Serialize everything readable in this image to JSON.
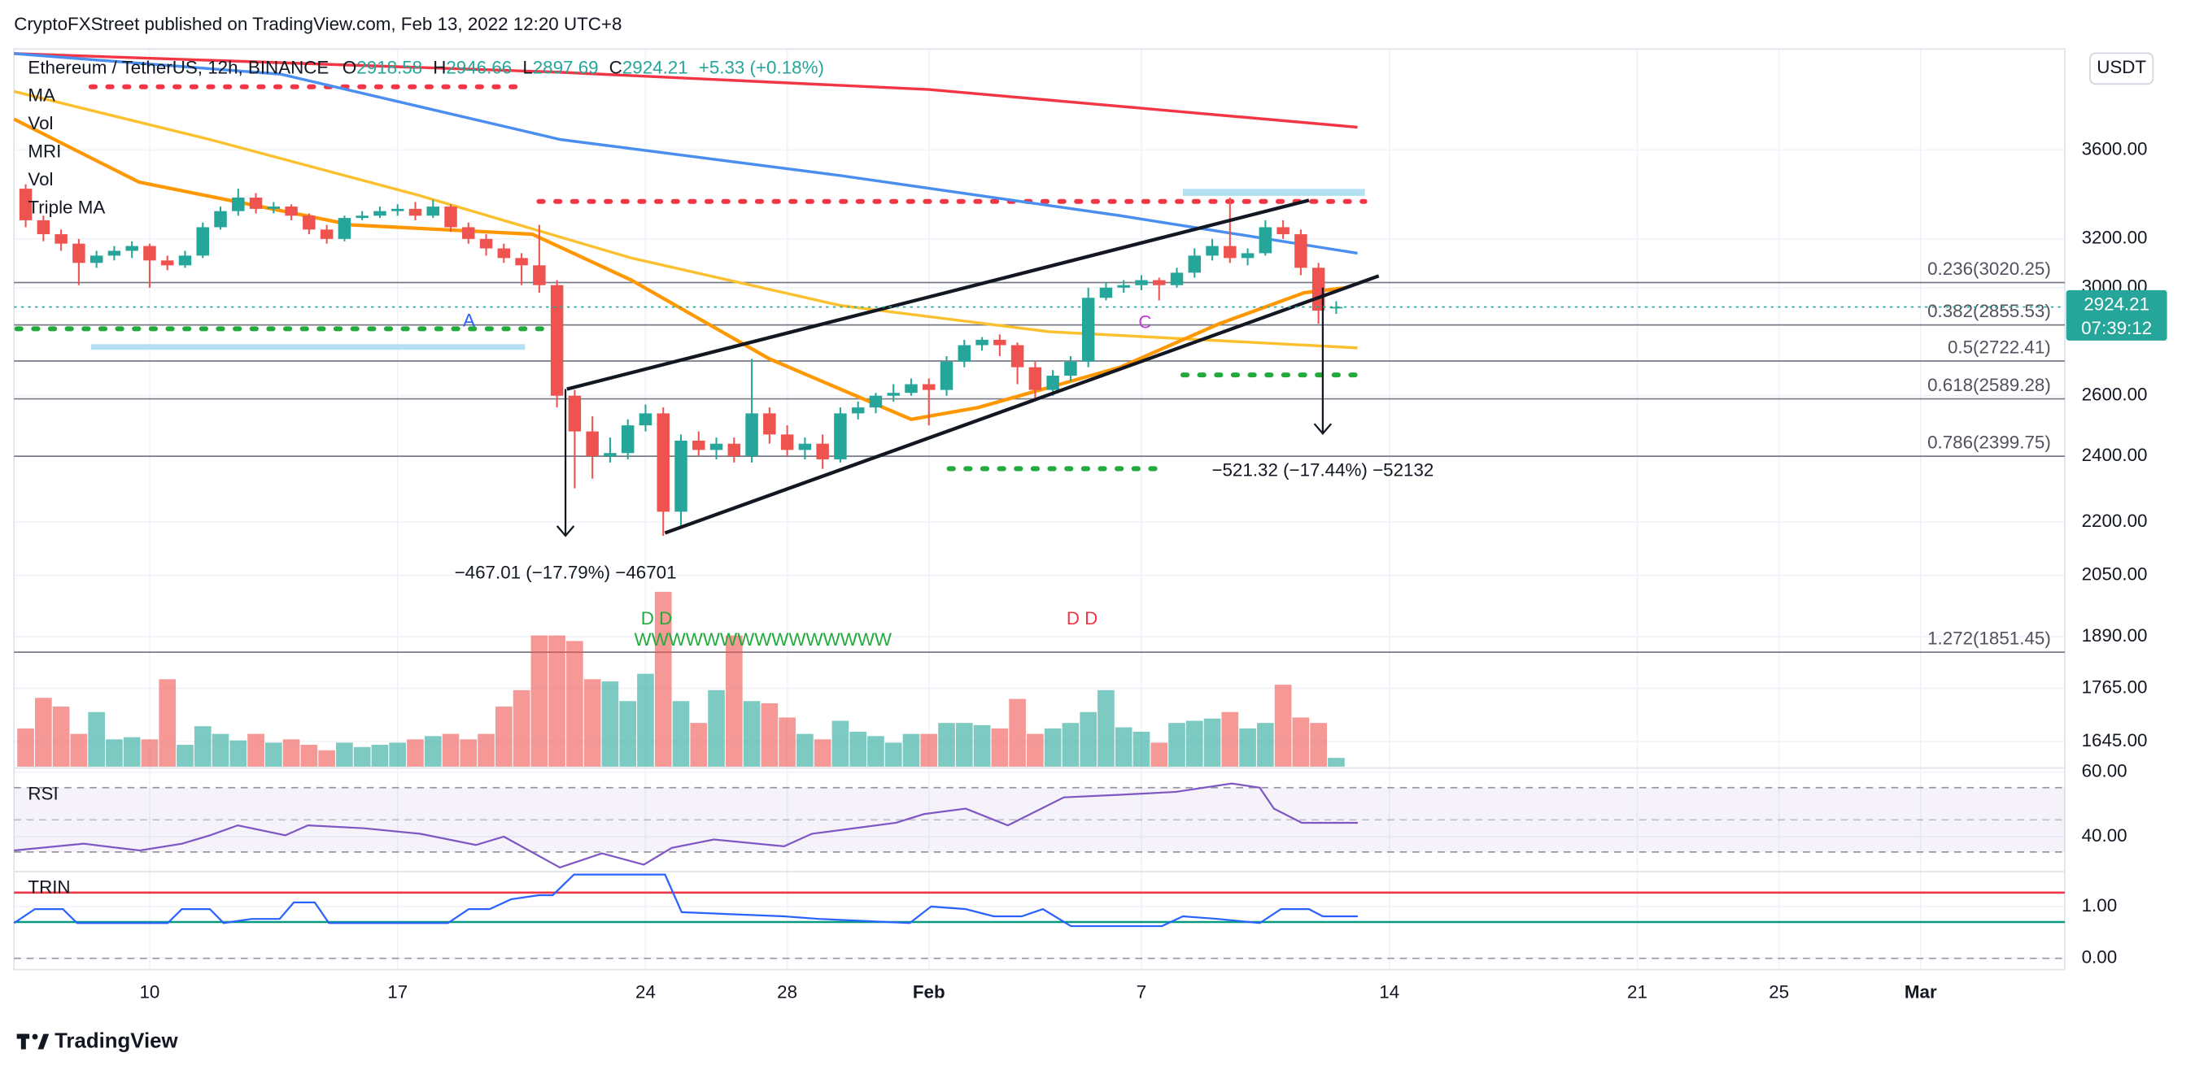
{
  "chart_data": {
    "type": "candlestick",
    "published": "CryptoFXStreet published on TradingView.com, Feb 13, 2022 12:20 UTC+8",
    "title": "Ethereum / TetherUS, 12h, BINANCE",
    "ohlc_labels": [
      "O",
      "H",
      "L",
      "C"
    ],
    "change": "+5.33 (+0.18%)",
    "indicator_names": [
      "MA",
      "Vol",
      "MRI",
      "Vol",
      "Triple MA"
    ],
    "currency": "USDT",
    "countdown": "07:39:12",
    "brand": "TradingView",
    "log_scale": true,
    "grid": true,
    "up_color": "#26a69a",
    "down_color": "#ef5350",
    "xlim": [
      6.17,
      64.07
    ],
    "xticks": [
      10,
      17,
      24,
      28,
      {
        "value": 32,
        "label": "Feb"
      },
      {
        "value": 38,
        "label": "7"
      },
      {
        "value": 45,
        "label": "14"
      },
      {
        "value": 52,
        "label": "21"
      },
      {
        "value": 56,
        "label": "25"
      },
      {
        "value": 60,
        "label": "Mar"
      }
    ],
    "ylim": [
      1591,
      4115
    ],
    "yticks": [
      {
        "value": 3600,
        "label": "3600.00"
      },
      {
        "value": 3200,
        "label": "3200.00"
      },
      {
        "value": 3000,
        "label": "3000.00"
      },
      {
        "value": 2600,
        "label": "2600.00"
      },
      {
        "value": 2400,
        "label": "2400.00"
      },
      {
        "value": 2200,
        "label": "2200.00"
      },
      {
        "value": 2050,
        "label": "2050.00"
      },
      {
        "value": 1890,
        "label": "1890.00"
      },
      {
        "value": 1765,
        "label": "1765.00"
      },
      {
        "value": 1645,
        "label": "1645.00"
      }
    ],
    "x": [
      6.5,
      7,
      7.5,
      8,
      8.5,
      9,
      9.5,
      10,
      10.5,
      11,
      11.5,
      12,
      12.5,
      13,
      13.5,
      14,
      14.5,
      15,
      15.5,
      16,
      16.5,
      17,
      17.5,
      18,
      18.5,
      19,
      19.5,
      20,
      20.5,
      21,
      21.5,
      22,
      22.5,
      23,
      23.5,
      24,
      24.5,
      25,
      25.5,
      26,
      26.5,
      27,
      27.5,
      28,
      28.5,
      29,
      29.5,
      30,
      30.5,
      31,
      31.5,
      32,
      32.5,
      33,
      33.5,
      34,
      34.5,
      35,
      35.5,
      36,
      36.5,
      37,
      37.5,
      38,
      38.5,
      39,
      39.5,
      40,
      40.5,
      41,
      41.5,
      42,
      42.5,
      43,
      43.5
    ],
    "ohlc": [
      [
        3420,
        3440,
        3250,
        3280
      ],
      [
        3280,
        3300,
        3190,
        3220
      ],
      [
        3220,
        3240,
        3150,
        3180
      ],
      [
        3180,
        3200,
        3010,
        3100
      ],
      [
        3100,
        3150,
        3080,
        3130
      ],
      [
        3130,
        3170,
        3110,
        3150
      ],
      [
        3150,
        3190,
        3120,
        3170
      ],
      [
        3170,
        3180,
        3000,
        3110
      ],
      [
        3110,
        3130,
        3070,
        3090
      ],
      [
        3090,
        3150,
        3080,
        3130
      ],
      [
        3130,
        3270,
        3120,
        3250
      ],
      [
        3250,
        3340,
        3240,
        3320
      ],
      [
        3320,
        3420,
        3300,
        3380
      ],
      [
        3380,
        3400,
        3310,
        3330
      ],
      [
        3330,
        3360,
        3310,
        3340
      ],
      [
        3340,
        3350,
        3280,
        3300
      ],
      [
        3300,
        3310,
        3220,
        3240
      ],
      [
        3240,
        3260,
        3180,
        3200
      ],
      [
        3200,
        3300,
        3190,
        3290
      ],
      [
        3290,
        3320,
        3280,
        3300
      ],
      [
        3300,
        3340,
        3290,
        3320
      ],
      [
        3320,
        3350,
        3300,
        3330
      ],
      [
        3330,
        3360,
        3280,
        3300
      ],
      [
        3300,
        3370,
        3290,
        3340
      ],
      [
        3340,
        3350,
        3230,
        3250
      ],
      [
        3250,
        3270,
        3180,
        3200
      ],
      [
        3200,
        3220,
        3130,
        3160
      ],
      [
        3160,
        3180,
        3100,
        3120
      ],
      [
        3120,
        3140,
        3010,
        3090
      ],
      [
        3090,
        3260,
        2980,
        3010
      ],
      [
        3010,
        3030,
        2560,
        2600
      ],
      [
        2600,
        2620,
        2300,
        2480
      ],
      [
        2480,
        2530,
        2330,
        2400
      ],
      [
        2400,
        2460,
        2380,
        2410
      ],
      [
        2410,
        2520,
        2390,
        2500
      ],
      [
        2500,
        2570,
        2480,
        2540
      ],
      [
        2540,
        2560,
        2160,
        2230
      ],
      [
        2230,
        2470,
        2180,
        2450
      ],
      [
        2450,
        2480,
        2400,
        2420
      ],
      [
        2420,
        2460,
        2390,
        2440
      ],
      [
        2440,
        2460,
        2380,
        2400
      ],
      [
        2400,
        2730,
        2380,
        2540
      ],
      [
        2540,
        2560,
        2440,
        2470
      ],
      [
        2470,
        2500,
        2400,
        2420
      ],
      [
        2420,
        2460,
        2390,
        2440
      ],
      [
        2440,
        2470,
        2360,
        2390
      ],
      [
        2390,
        2560,
        2380,
        2540
      ],
      [
        2540,
        2580,
        2520,
        2560
      ],
      [
        2560,
        2610,
        2540,
        2600
      ],
      [
        2600,
        2640,
        2580,
        2610
      ],
      [
        2610,
        2660,
        2600,
        2640
      ],
      [
        2640,
        2660,
        2500,
        2620
      ],
      [
        2620,
        2740,
        2600,
        2720
      ],
      [
        2720,
        2800,
        2700,
        2780
      ],
      [
        2780,
        2810,
        2760,
        2800
      ],
      [
        2800,
        2820,
        2740,
        2780
      ],
      [
        2780,
        2790,
        2640,
        2700
      ],
      [
        2700,
        2720,
        2580,
        2620
      ],
      [
        2620,
        2690,
        2600,
        2670
      ],
      [
        2670,
        2740,
        2650,
        2720
      ],
      [
        2720,
        3000,
        2700,
        2960
      ],
      [
        2960,
        3020,
        2950,
        3000
      ],
      [
        3000,
        3030,
        2980,
        3010
      ],
      [
        3010,
        3050,
        2990,
        3030
      ],
      [
        3030,
        3040,
        2950,
        3010
      ],
      [
        3010,
        3080,
        3000,
        3060
      ],
      [
        3060,
        3160,
        3040,
        3130
      ],
      [
        3130,
        3200,
        3110,
        3170
      ],
      [
        3170,
        3380,
        3100,
        3120
      ],
      [
        3120,
        3160,
        3090,
        3140
      ],
      [
        3140,
        3280,
        3130,
        3250
      ],
      [
        3250,
        3280,
        3200,
        3220
      ],
      [
        3220,
        3240,
        3050,
        3080
      ],
      [
        3080,
        3100,
        2860,
        2910
      ],
      [
        2918.58,
        2946.66,
        2897.69,
        2924.21
      ]
    ],
    "volume": [
      35,
      63,
      55,
      30,
      50,
      25,
      27,
      25,
      80,
      20,
      37,
      30,
      24,
      30,
      22,
      25,
      20,
      15,
      22,
      18,
      20,
      22,
      25,
      28,
      30,
      25,
      30,
      55,
      70,
      120,
      120,
      115,
      80,
      78,
      60,
      85,
      160,
      60,
      40,
      70,
      120,
      60,
      58,
      45,
      30,
      25,
      42,
      32,
      28,
      22,
      30,
      30,
      40,
      40,
      38,
      35,
      62,
      30,
      35,
      40,
      50,
      70,
      36,
      32,
      22,
      40,
      42,
      44,
      50,
      35,
      40,
      75,
      45,
      40,
      8
    ],
    "moving_averages": [
      {
        "color": "#f23645",
        "x": [
          6.17,
          21.6,
          32,
          44.1
        ],
        "values": [
          4090,
          3990,
          3900,
          3710
        ]
      },
      {
        "color": "#4a8ff0",
        "x": [
          6.17,
          13.7,
          21.6,
          29.5,
          37.4,
          44.1
        ],
        "values": [
          4090,
          3980,
          3650,
          3480,
          3300,
          3140
        ]
      },
      {
        "color": "#fbc02d",
        "x": [
          6.17,
          11.7,
          17.6,
          23.6,
          29.5,
          35.4,
          44.1
        ],
        "values": [
          3890,
          3650,
          3390,
          3120,
          2930,
          2830,
          2770
        ]
      },
      {
        "color": "#ff9800",
        "x": [
          6.17,
          9.7,
          15.7,
          20.8,
          23.6,
          27.5,
          31.5,
          33.4,
          37.4,
          40.2,
          42.6,
          43.8
        ],
        "values": [
          3750,
          3450,
          3260,
          3220,
          3030,
          2730,
          2520,
          2560,
          2700,
          2860,
          2980,
          3000
        ]
      }
    ],
    "fib_levels": [
      {
        "value": 3020.25,
        "label": "0.236(3020.25)"
      },
      {
        "value": 2855.53,
        "label": "0.382(2855.53)"
      },
      {
        "value": 2722.41,
        "label": "0.5(2722.41)"
      },
      {
        "value": 2589.28,
        "label": "0.618(2589.28)"
      },
      {
        "value": 2399.75,
        "label": "0.786(2399.75)"
      },
      {
        "value": 1851.45,
        "label": "1.272(1851.45)"
      }
    ],
    "trendlines": [
      {
        "x": [
          21.78,
          42.73
        ],
        "values": [
          2623,
          3368
        ]
      },
      {
        "x": [
          24.55,
          44.7
        ],
        "values": [
          2168,
          3047
        ]
      }
    ],
    "measures": [
      {
        "text": "−467.01 (−17.79%) −46701",
        "x": [
          21.74,
          21.74
        ],
        "values": [
          2623,
          2160
        ]
      },
      {
        "text": "−521.32 (−17.44%) −52132",
        "x": [
          43.12,
          43.12
        ],
        "values": [
          3000,
          2473
        ]
      }
    ],
    "annotations": [
      "A",
      "C",
      "D D",
      "WWWWWWWWWWWWWWW",
      "D D"
    ],
    "rsi": {
      "label": "RSI",
      "color": "#7e57c2",
      "ylim": [
        30,
        61.3
      ],
      "yticks": [
        {
          "value": 60,
          "label": "60.00"
        },
        {
          "value": 40,
          "label": "40.00"
        }
      ],
      "x": [
        6.17,
        8.14,
        9.72,
        10.91,
        11.7,
        12.49,
        13.83,
        14.47,
        16.05,
        17.63,
        19.21,
        20,
        21.58,
        22.77,
        23.95,
        24.74,
        25.93,
        27.91,
        28.7,
        31.07,
        31.86,
        33.04,
        34.23,
        35.81,
        37.39,
        38.97,
        40.55,
        41.34,
        41.74,
        42.53,
        44.11
      ],
      "values": [
        35.7,
        37.8,
        35.7,
        37.8,
        40.4,
        43.5,
        40.4,
        43.5,
        42.6,
        40.9,
        37.4,
        40,
        30.4,
        34.8,
        31.3,
        36.5,
        39.1,
        37,
        40.9,
        44.3,
        47,
        48.7,
        43.5,
        52.2,
        53,
        53.9,
        56.5,
        55.2,
        48.7,
        44.3,
        44.3
      ]
    },
    "trin": {
      "label": "TRIN",
      "color": "#2962ff",
      "ylim": [
        -0.14,
        1.65
      ],
      "yticks": [
        {
          "value": 1,
          "label": "1.00"
        },
        {
          "value": 0,
          "label": "0.00"
        }
      ],
      "levels": [
        {
          "value": 1.27,
          "color": "#f23645"
        },
        {
          "value": 0.7,
          "color": "#089981"
        }
      ],
      "x": [
        6.17,
        6.76,
        7.55,
        7.95,
        10.51,
        10.91,
        11.7,
        12.09,
        12.88,
        13.67,
        14.07,
        14.66,
        15.06,
        18.42,
        19.01,
        19.6,
        20.2,
        20.99,
        21.38,
        21.98,
        24.55,
        25.02,
        27.91,
        28.9,
        31.46,
        32.06,
        33.04,
        33.83,
        34.62,
        35.22,
        36.01,
        38.58,
        39.17,
        40.16,
        41.34,
        41.94,
        42.73,
        43.12,
        44.11
      ],
      "values": [
        0.68,
        0.95,
        0.95,
        0.68,
        0.68,
        0.95,
        0.95,
        0.68,
        0.76,
        0.76,
        1.08,
        1.08,
        0.68,
        0.68,
        0.95,
        0.95,
        1.14,
        1.22,
        1.22,
        1.62,
        1.62,
        0.89,
        0.81,
        0.76,
        0.68,
        1,
        0.95,
        0.81,
        0.81,
        0.95,
        0.62,
        0.62,
        0.81,
        0.76,
        0.68,
        0.95,
        0.95,
        0.81,
        0.81
      ]
    }
  }
}
